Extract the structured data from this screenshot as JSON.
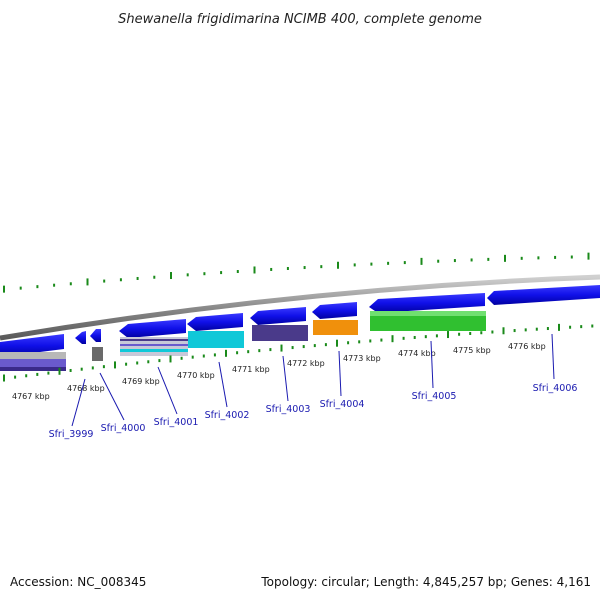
{
  "title": "Shewanella frigidimarina NCIMB 400, complete genome",
  "footer": {
    "accession": "Accession: NC_008345",
    "topology": "Topology: circular; Length: 4,845,257 bp; Genes: 4,161"
  },
  "colors": {
    "forward": "#1010e8",
    "backbone": "#8a8a8a",
    "ticks": "#1a8a1a",
    "gene_label": "#1a1ab0",
    "cyan": "#10c8d8",
    "orange": "#f0900c",
    "green": "#30c030",
    "purple": "#4a3a8a",
    "gray": "#6a6a6a"
  },
  "kbp_labels": [
    "4767 kbp",
    "4768 kbp",
    "4769 kbp",
    "4770 kbp",
    "4771 kbp",
    "4772 kbp",
    "4773 kbp",
    "4774 kbp",
    "4775 kbp",
    "4776 kbp"
  ],
  "genes": [
    "Sfri_3999",
    "Sfri_4000",
    "Sfri_4001",
    "Sfri_4002",
    "Sfri_4003",
    "Sfri_4004",
    "Sfri_4005",
    "Sfri_4006"
  ]
}
